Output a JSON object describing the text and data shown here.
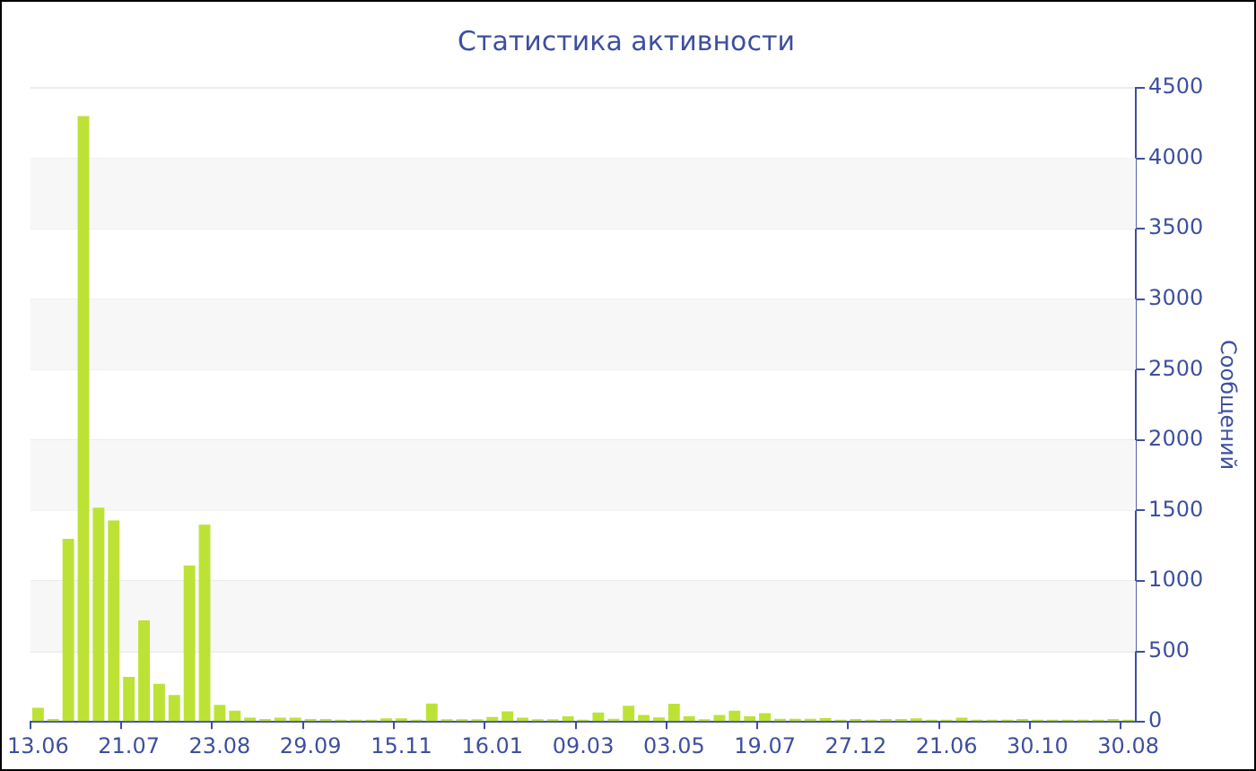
{
  "chart_data": {
    "type": "bar",
    "title": "Статистика активности",
    "ylabel": "Сообщений",
    "categories": [
      "13.06",
      null,
      null,
      null,
      null,
      null,
      "21.07",
      null,
      null,
      null,
      null,
      null,
      "23.08",
      null,
      null,
      null,
      null,
      null,
      "29.09",
      null,
      null,
      null,
      null,
      null,
      "15.11",
      null,
      null,
      null,
      null,
      null,
      "16.01",
      null,
      null,
      null,
      null,
      null,
      "09.03",
      null,
      null,
      null,
      null,
      null,
      "03.05",
      null,
      null,
      null,
      null,
      null,
      "19.07",
      null,
      null,
      null,
      null,
      null,
      "27.12",
      null,
      null,
      null,
      null,
      null,
      "21.06",
      null,
      null,
      null,
      null,
      null,
      "30.10",
      null,
      null,
      null,
      null,
      null,
      "30.08"
    ],
    "values": [
      100,
      20,
      1300,
      4300,
      1520,
      1430,
      320,
      720,
      270,
      190,
      1110,
      1400,
      120,
      80,
      30,
      20,
      30,
      30,
      20,
      20,
      15,
      15,
      15,
      25,
      25,
      15,
      130,
      18,
      18,
      18,
      35,
      75,
      30,
      18,
      18,
      40,
      15,
      66,
      22,
      115,
      49,
      31,
      128,
      40,
      18,
      49,
      80,
      40,
      62,
      22,
      22,
      22,
      26,
      15,
      20,
      15,
      20,
      20,
      25,
      15,
      15,
      30,
      15,
      15,
      15,
      20,
      15,
      15,
      15,
      15,
      15,
      20,
      15
    ],
    "color": "#bde236",
    "ylim": [
      0,
      4500
    ],
    "yticks": [
      0,
      500,
      1000,
      1500,
      2000,
      2500,
      3000,
      3500,
      4000,
      4500
    ],
    "grid": true
  }
}
